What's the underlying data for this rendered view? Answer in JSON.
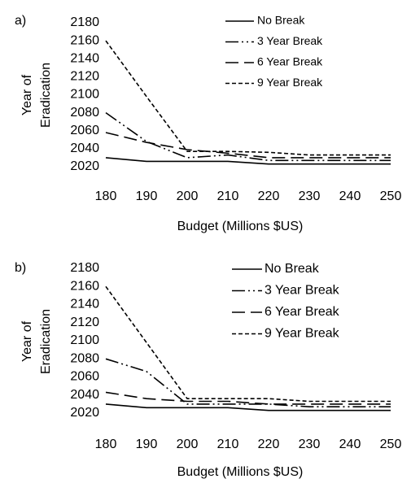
{
  "chart_data": [
    {
      "panel_label": "a)",
      "type": "line",
      "xlabel": "Budget (Millions $US)",
      "ylabel_lines": [
        "Year of",
        "Eradication"
      ],
      "x": [
        180,
        190,
        200,
        210,
        220,
        230,
        240,
        250
      ],
      "xlim": [
        180,
        250
      ],
      "ylim": [
        2020,
        2180
      ],
      "yticks": [
        2020,
        2040,
        2060,
        2080,
        2100,
        2120,
        2140,
        2160,
        2180
      ],
      "xticks": [
        180,
        190,
        200,
        210,
        220,
        230,
        240,
        250
      ],
      "grid": false,
      "legend_position": "top-right",
      "series": [
        {
          "name": "No Break",
          "style": "solid",
          "values": [
            2030,
            2026,
            2026,
            2026,
            2023,
            2023,
            2023,
            2023
          ]
        },
        {
          "name": "3 Year Break",
          "style": "dash-dot-dot",
          "values": [
            2080,
            2048,
            2030,
            2033,
            2027,
            2027,
            2027,
            2027
          ]
        },
        {
          "name": "6 Year Break",
          "style": "long-dash",
          "values": [
            2058,
            2047,
            2039,
            2035,
            2030,
            2030,
            2030,
            2030
          ]
        },
        {
          "name": "9 Year Break",
          "style": "short-dash",
          "values": [
            2160,
            2098,
            2037,
            2037,
            2036,
            2033,
            2033,
            2033
          ]
        }
      ]
    },
    {
      "panel_label": "b)",
      "type": "line",
      "xlabel": "Budget (Millions $US)",
      "ylabel_lines": [
        "Year of",
        "Eradication"
      ],
      "x": [
        180,
        190,
        200,
        210,
        220,
        230,
        240,
        250
      ],
      "xlim": [
        180,
        250
      ],
      "ylim": [
        2020,
        2180
      ],
      "yticks": [
        2020,
        2040,
        2060,
        2080,
        2100,
        2120,
        2140,
        2160,
        2180
      ],
      "xticks": [
        180,
        190,
        200,
        210,
        220,
        230,
        240,
        250
      ],
      "grid": false,
      "legend_position": "top-right",
      "series": [
        {
          "name": "No Break",
          "style": "solid",
          "values": [
            2030,
            2026,
            2026,
            2026,
            2023,
            2023,
            2023,
            2023
          ]
        },
        {
          "name": "3 Year Break",
          "style": "dash-dot-dot",
          "values": [
            2080,
            2066,
            2030,
            2030,
            2030,
            2027,
            2027,
            2027
          ]
        },
        {
          "name": "6 Year Break",
          "style": "long-dash",
          "values": [
            2043,
            2036,
            2033,
            2033,
            2030,
            2030,
            2030,
            2030
          ]
        },
        {
          "name": "9 Year Break",
          "style": "short-dash",
          "values": [
            2160,
            2098,
            2036,
            2036,
            2036,
            2033,
            2033,
            2033
          ]
        }
      ]
    }
  ]
}
